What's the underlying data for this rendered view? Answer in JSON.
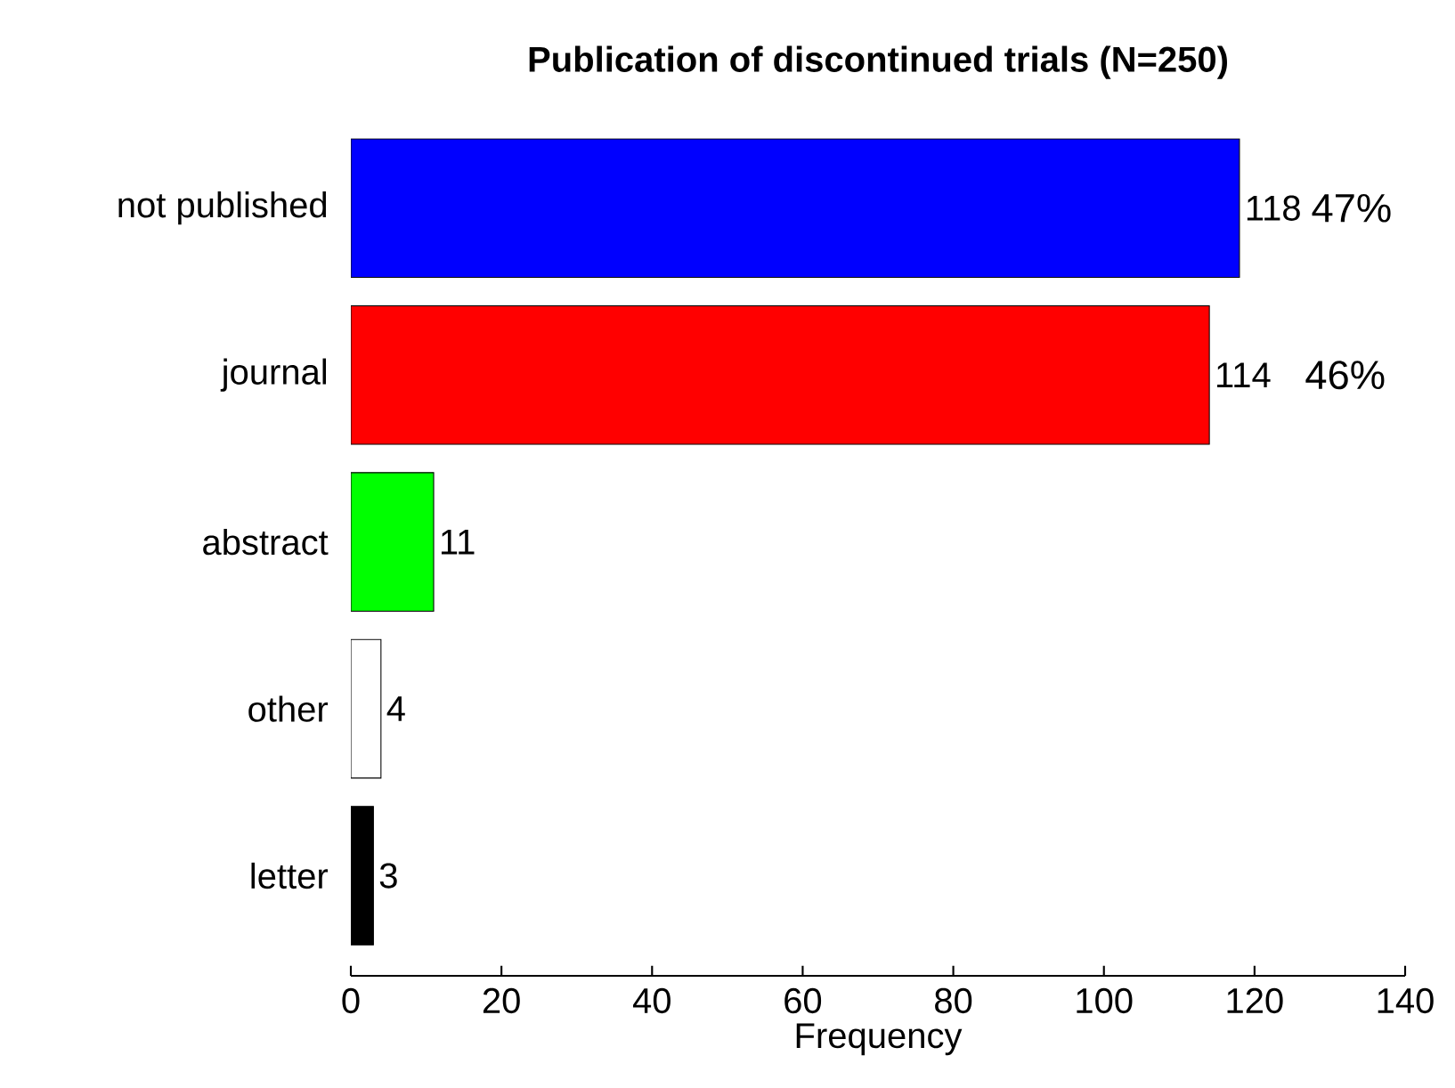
{
  "chart_data": {
    "type": "bar",
    "orientation": "horizontal",
    "title": "Publication of discontinued trials (N=250)",
    "xlabel": "Frequency",
    "categories": [
      "not published",
      "journal",
      "abstract",
      "other",
      "letter"
    ],
    "values": [
      118,
      114,
      11,
      4,
      3
    ],
    "colors": [
      "#0000ff",
      "#ff0000",
      "#00ff00",
      "#ffffff",
      "#000000"
    ],
    "xlim": [
      0,
      140
    ],
    "xticks": [
      0,
      20,
      40,
      60,
      80,
      100,
      120,
      140
    ],
    "data_labels": true,
    "grid": false,
    "annotations": [
      {
        "text": "47%",
        "x": 118,
        "y": "not published"
      },
      {
        "text": "46%",
        "x": 114,
        "y": "journal"
      }
    ]
  }
}
